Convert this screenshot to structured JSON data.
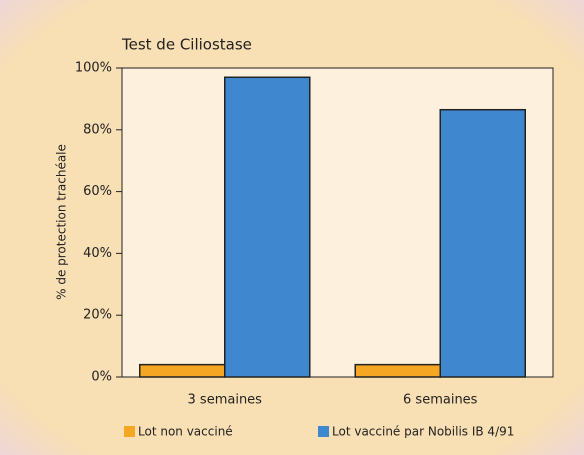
{
  "chart_data": {
    "type": "bar",
    "title": "Test de Ciliostase",
    "y_label": "% de protection trachéale",
    "categories": [
      "3 semaines",
      "6 semaines"
    ],
    "series": [
      {
        "name": "Lot non vacciné",
        "color": "#f5a623",
        "values": [
          4,
          4
        ]
      },
      {
        "name": "Lot vacciné par Nobilis IB 4/91",
        "color": "#3f87cf",
        "values": [
          97,
          86.5
        ]
      }
    ],
    "ylim": [
      0,
      100
    ],
    "yticks": [
      {
        "value": 0,
        "label": "0%"
      },
      {
        "value": 20,
        "label": "20%"
      },
      {
        "value": 40,
        "label": "40%"
      },
      {
        "value": 60,
        "label": "60%"
      },
      {
        "value": 80,
        "label": "80%"
      },
      {
        "value": 100,
        "label": "100%"
      }
    ],
    "legend": "bottom"
  }
}
